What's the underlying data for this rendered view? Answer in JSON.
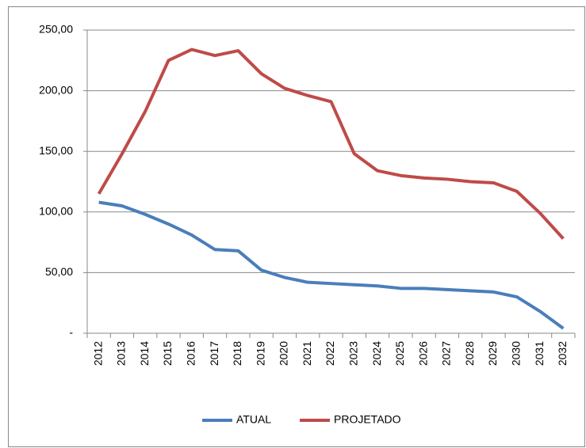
{
  "chart_data": {
    "type": "line",
    "categories": [
      "2012",
      "2013",
      "2014",
      "2015",
      "2016",
      "2017",
      "2018",
      "2019",
      "2020",
      "2021",
      "2022",
      "2023",
      "2024",
      "2025",
      "2026",
      "2027",
      "2028",
      "2029",
      "2030",
      "2031",
      "2032"
    ],
    "series": [
      {
        "name": "ATUAL",
        "color": "#4a7ebb",
        "values": [
          108,
          105,
          98,
          90,
          81,
          69,
          68,
          52,
          46,
          42,
          41,
          40,
          39,
          37,
          37,
          36,
          35,
          34,
          30,
          18,
          4
        ]
      },
      {
        "name": "PROJETADO",
        "color": "#be4b48",
        "values": [
          115,
          148,
          183,
          225,
          234,
          229,
          233,
          214,
          202,
          196,
          191,
          148,
          134,
          130,
          128,
          127,
          125,
          124,
          117,
          99,
          78
        ]
      }
    ],
    "ylim": [
      0,
      250
    ],
    "yticks": [
      {
        "value": 0,
        "label": "-"
      },
      {
        "value": 50,
        "label": "50,00"
      },
      {
        "value": 100,
        "label": "100,00"
      },
      {
        "value": 150,
        "label": "150,00"
      },
      {
        "value": 200,
        "label": "200,00"
      },
      {
        "value": 250,
        "label": "250,00"
      }
    ],
    "grid": true,
    "legend": "bottom"
  }
}
